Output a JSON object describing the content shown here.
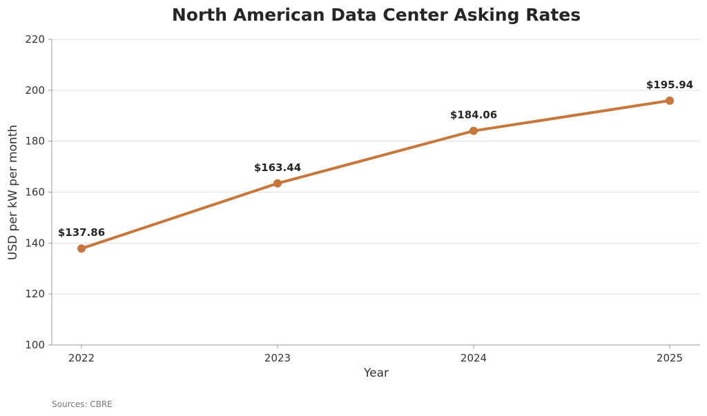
{
  "chart_data": {
    "type": "line",
    "title": "North American Data Center Asking Rates",
    "xlabel": "Year",
    "ylabel": "USD per kW per month",
    "categories": [
      "2022",
      "2023",
      "2024",
      "2025"
    ],
    "series": [
      {
        "values": [
          137.86,
          163.44,
          184.06,
          195.94
        ],
        "labels": [
          "$137.86",
          "$163.44",
          "$184.06",
          "$195.94"
        ],
        "color": "#c8763a"
      }
    ],
    "ylim": [
      100,
      220
    ],
    "yticks": [
      100,
      120,
      140,
      160,
      180,
      200,
      220
    ],
    "grid": true,
    "source_note": "Sources: CBRE"
  }
}
